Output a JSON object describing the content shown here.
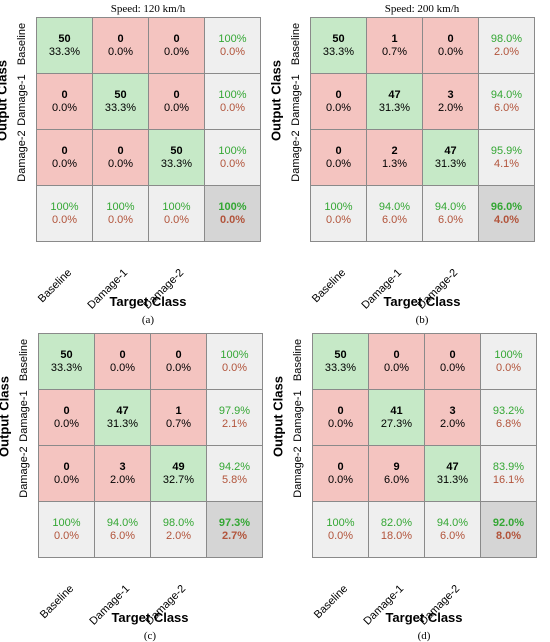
{
  "chart_data": [
    {
      "type": "heatmap",
      "title": "Speed: 120 km/h",
      "panel_label": "(a)",
      "xlabel": "Target Class",
      "ylabel": "Output Class",
      "classes": [
        "Baseline",
        "Damage-1",
        "Damage-2"
      ],
      "counts": [
        [
          50,
          0,
          0
        ],
        [
          0,
          50,
          0
        ],
        [
          0,
          0,
          50
        ]
      ],
      "percent_of_total": [
        [
          "33.3%",
          "0.0%",
          "0.0%"
        ],
        [
          "0.0%",
          "33.3%",
          "0.0%"
        ],
        [
          "0.0%",
          "0.0%",
          "33.3%"
        ]
      ],
      "row_summary": [
        [
          "100%",
          "0.0%"
        ],
        [
          "100%",
          "0.0%"
        ],
        [
          "100%",
          "0.0%"
        ]
      ],
      "col_summary": [
        [
          "100%",
          "0.0%"
        ],
        [
          "100%",
          "0.0%"
        ],
        [
          "100%",
          "0.0%"
        ]
      ],
      "overall": [
        "100%",
        "0.0%"
      ]
    },
    {
      "type": "heatmap",
      "title": "Speed: 200 km/h",
      "panel_label": "(b)",
      "xlabel": "Target Class",
      "ylabel": "Output Class",
      "classes": [
        "Baseline",
        "Damage-1",
        "Damage-2"
      ],
      "counts": [
        [
          50,
          1,
          0
        ],
        [
          0,
          47,
          3
        ],
        [
          0,
          2,
          47
        ]
      ],
      "percent_of_total": [
        [
          "33.3%",
          "0.7%",
          "0.0%"
        ],
        [
          "0.0%",
          "31.3%",
          "2.0%"
        ],
        [
          "0.0%",
          "1.3%",
          "31.3%"
        ]
      ],
      "row_summary": [
        [
          "98.0%",
          "2.0%"
        ],
        [
          "94.0%",
          "6.0%"
        ],
        [
          "95.9%",
          "4.1%"
        ]
      ],
      "col_summary": [
        [
          "100%",
          "0.0%"
        ],
        [
          "94.0%",
          "6.0%"
        ],
        [
          "94.0%",
          "6.0%"
        ]
      ],
      "overall": [
        "96.0%",
        "4.0%"
      ]
    },
    {
      "type": "heatmap",
      "title": "",
      "panel_label": "(c)",
      "xlabel": "Target Class",
      "ylabel": "Output Class",
      "classes": [
        "Baseline",
        "Damage-1",
        "Damage-2"
      ],
      "counts": [
        [
          50,
          0,
          0
        ],
        [
          0,
          47,
          1
        ],
        [
          0,
          3,
          49
        ]
      ],
      "percent_of_total": [
        [
          "33.3%",
          "0.0%",
          "0.0%"
        ],
        [
          "0.0%",
          "31.3%",
          "0.7%"
        ],
        [
          "0.0%",
          "2.0%",
          "32.7%"
        ]
      ],
      "row_summary": [
        [
          "100%",
          "0.0%"
        ],
        [
          "97.9%",
          "2.1%"
        ],
        [
          "94.2%",
          "5.8%"
        ]
      ],
      "col_summary": [
        [
          "100%",
          "0.0%"
        ],
        [
          "94.0%",
          "6.0%"
        ],
        [
          "98.0%",
          "2.0%"
        ]
      ],
      "overall": [
        "97.3%",
        "2.7%"
      ]
    },
    {
      "type": "heatmap",
      "title": "",
      "panel_label": "(d)",
      "xlabel": "Target Class",
      "ylabel": "Output Class",
      "classes": [
        "Baseline",
        "Damage-1",
        "Damage-2"
      ],
      "counts": [
        [
          50,
          0,
          0
        ],
        [
          0,
          41,
          3
        ],
        [
          0,
          9,
          47
        ]
      ],
      "percent_of_total": [
        [
          "33.3%",
          "0.0%",
          "0.0%"
        ],
        [
          "0.0%",
          "27.3%",
          "2.0%"
        ],
        [
          "0.0%",
          "6.0%",
          "31.3%"
        ]
      ],
      "row_summary": [
        [
          "100%",
          "0.0%"
        ],
        [
          "93.2%",
          "6.8%"
        ],
        [
          "83.9%",
          "16.1%"
        ]
      ],
      "col_summary": [
        [
          "100%",
          "0.0%"
        ],
        [
          "82.0%",
          "18.0%"
        ],
        [
          "94.0%",
          "6.0%"
        ]
      ],
      "overall": [
        "92.0%",
        "8.0%"
      ]
    }
  ],
  "colors": {
    "correct": "#c6e9c7",
    "incorrect": "#f4c4c0",
    "summary": "#efefef",
    "overall": "#d5d5d5",
    "accuracy_text": "#34a734",
    "error_text": "#b2543b"
  }
}
